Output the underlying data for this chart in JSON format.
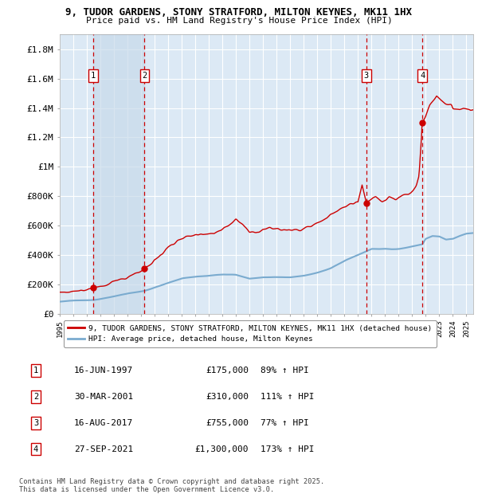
{
  "title_line1": "9, TUDOR GARDENS, STONY STRATFORD, MILTON KEYNES, MK11 1HX",
  "title_line2": "Price paid vs. HM Land Registry's House Price Index (HPI)",
  "ylim": [
    0,
    1900000
  ],
  "xlim_start": 1995.0,
  "xlim_end": 2025.5,
  "yticks": [
    0,
    200000,
    400000,
    600000,
    800000,
    1000000,
    1200000,
    1400000,
    1600000,
    1800000
  ],
  "ytick_labels": [
    "£0",
    "£200K",
    "£400K",
    "£600K",
    "£800K",
    "£1M",
    "£1.2M",
    "£1.4M",
    "£1.6M",
    "£1.8M"
  ],
  "background_color": "#ffffff",
  "plot_bg_color": "#dce9f5",
  "grid_color": "#ffffff",
  "red_line_color": "#cc0000",
  "blue_line_color": "#7aabcf",
  "sale_marker_color": "#cc0000",
  "dashed_line_color": "#cc0000",
  "shade_color": "#c8daea",
  "sales": [
    {
      "num": 1,
      "year": 1997.46,
      "price": 175000,
      "date": "16-JUN-1997",
      "hpi_pct": "89%"
    },
    {
      "num": 2,
      "year": 2001.25,
      "price": 310000,
      "date": "30-MAR-2001",
      "hpi_pct": "111%"
    },
    {
      "num": 3,
      "year": 2017.62,
      "price": 755000,
      "date": "16-AUG-2017",
      "hpi_pct": "77%"
    },
    {
      "num": 4,
      "year": 2021.75,
      "price": 1300000,
      "date": "27-SEP-2021",
      "hpi_pct": "173%"
    }
  ],
  "legend_red_label": "9, TUDOR GARDENS, STONY STRATFORD, MILTON KEYNES, MK11 1HX (detached house)",
  "legend_blue_label": "HPI: Average price, detached house, Milton Keynes",
  "footnote": "Contains HM Land Registry data © Crown copyright and database right 2025.\nThis data is licensed under the Open Government Licence v3.0.",
  "table_rows": [
    {
      "num": 1,
      "date": "16-JUN-1997",
      "price": "£175,000",
      "hpi": "89% ↑ HPI"
    },
    {
      "num": 2,
      "date": "30-MAR-2001",
      "price": "£310,000",
      "hpi": "111% ↑ HPI"
    },
    {
      "num": 3,
      "date": "16-AUG-2017",
      "price": "£755,000",
      "hpi": "77% ↑ HPI"
    },
    {
      "num": 4,
      "date": "27-SEP-2021",
      "price": "£1,300,000",
      "hpi": "173% ↑ HPI"
    }
  ]
}
